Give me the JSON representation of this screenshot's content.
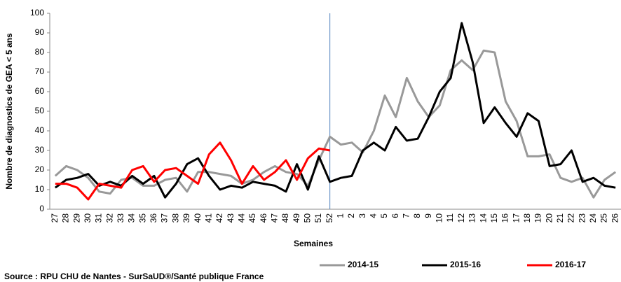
{
  "chart_data": {
    "type": "line",
    "y_label": "Nombre de diagnostics de GEA < 5 ans",
    "x_label": "Semaines",
    "source": "Source : RPU CHU de Nantes - SurSaUD®/Santé publique France",
    "categories": [
      "27",
      "28",
      "29",
      "30",
      "31",
      "32",
      "33",
      "34",
      "35",
      "36",
      "37",
      "38",
      "39",
      "40",
      "41",
      "42",
      "43",
      "44",
      "45",
      "46",
      "47",
      "48",
      "49",
      "50",
      "51",
      "52",
      "1",
      "2",
      "3",
      "4",
      "5",
      "6",
      "7",
      "8",
      "9",
      "10",
      "11",
      "12",
      "13",
      "14",
      "15",
      "16",
      "17",
      "18",
      "19",
      "20",
      "21",
      "22",
      "23",
      "24",
      "25",
      "26"
    ],
    "series": [
      {
        "name": "2014-15",
        "color": "#999999",
        "values": [
          17,
          22,
          20,
          16,
          9,
          8,
          15,
          16,
          12,
          12,
          15,
          16,
          9,
          19,
          19,
          18,
          17,
          13,
          15,
          19,
          22,
          19,
          18,
          12,
          25,
          37,
          33,
          34,
          29,
          40,
          58,
          47,
          67,
          55,
          47,
          53,
          71,
          76,
          71,
          81,
          80,
          55,
          45,
          27,
          27,
          28,
          16,
          14,
          16,
          6,
          15,
          19
        ]
      },
      {
        "name": "2015-16",
        "color": "#000000",
        "values": [
          11,
          15,
          16,
          18,
          12,
          14,
          12,
          17,
          13,
          17,
          6,
          13,
          23,
          26,
          17,
          10,
          12,
          11,
          14,
          13,
          12,
          9,
          23,
          10,
          27,
          14,
          16,
          17,
          30,
          34,
          30,
          42,
          35,
          36,
          47,
          60,
          67,
          95,
          75,
          44,
          52,
          44,
          37,
          49,
          45,
          22,
          23,
          30,
          14,
          16,
          12,
          11
        ]
      },
      {
        "name": "2016-17",
        "color": "#ff0000",
        "values": [
          13,
          13,
          11,
          5,
          13,
          12,
          11,
          20,
          22,
          14,
          20,
          21,
          17,
          13,
          28,
          34,
          25,
          13,
          22,
          15,
          19,
          25,
          15,
          26,
          31,
          30,
          null,
          null,
          null,
          null,
          null,
          null,
          null,
          null,
          null,
          null,
          null,
          null,
          null,
          null,
          null,
          null,
          null,
          null,
          null,
          null,
          null,
          null,
          null,
          null,
          null,
          null
        ]
      }
    ],
    "ylim": [
      0,
      100
    ],
    "yticks": [
      0,
      10,
      20,
      30,
      40,
      50,
      60,
      70,
      80,
      90,
      100
    ],
    "grid": false
  }
}
